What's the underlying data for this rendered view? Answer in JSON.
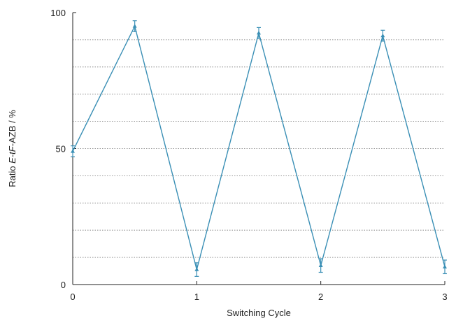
{
  "chart_data": {
    "type": "line",
    "xlabel": "Switching Cycle",
    "ylabel": {
      "prefix": "Ratio ",
      "italic": "E-tF",
      "suffix": "-AZB / %"
    },
    "xlim": [
      0,
      3
    ],
    "ylim": [
      0,
      100
    ],
    "x_ticks": [
      0,
      1,
      2,
      3
    ],
    "y_ticks": [
      0,
      50,
      100
    ],
    "y_minor_gridlines": [
      10,
      20,
      30,
      40,
      50,
      60,
      70,
      80,
      90
    ],
    "grid": "horizontal dotted",
    "legend": "none",
    "series": [
      {
        "x": [
          0,
          0.5,
          1,
          1.5,
          2,
          2.5,
          3
        ],
        "y": [
          49,
          95,
          5.5,
          92.5,
          7,
          91.5,
          6.5
        ],
        "yerr": [
          2,
          2,
          2.5,
          2,
          2.5,
          2,
          2.5
        ]
      }
    ],
    "colors": {
      "series": "#3a8fb5",
      "grid": "#777777",
      "axis": "#222222"
    }
  }
}
